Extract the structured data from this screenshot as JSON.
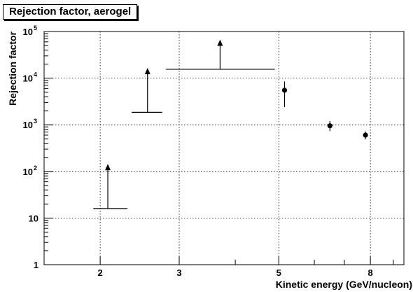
{
  "chart_data": {
    "type": "scatter",
    "title": "Rejection factor, aerogel",
    "xlabel": "Kinetic energy (GeV/nucleon)",
    "ylabel": "Rejection factor",
    "xscale": "log",
    "yscale": "log",
    "xlim": [
      1.5,
      9.5
    ],
    "ylim": [
      1,
      100000
    ],
    "grid": true,
    "x_ticks": [
      {
        "value": 2,
        "label": "2"
      },
      {
        "value": 3,
        "label": "3"
      },
      {
        "value": 5,
        "label": "5"
      },
      {
        "value": 8,
        "label": "8"
      }
    ],
    "y_ticks": [
      {
        "value": 1,
        "base": "1",
        "exp": ""
      },
      {
        "value": 10,
        "base": "10",
        "exp": ""
      },
      {
        "value": 100,
        "base": "10",
        "exp": "2"
      },
      {
        "value": 1000,
        "base": "10",
        "exp": "3"
      },
      {
        "value": 10000,
        "base": "10",
        "exp": "4"
      },
      {
        "value": 100000,
        "base": "10",
        "exp": "5"
      }
    ],
    "lower_limits": [
      {
        "x": 2.08,
        "x_low": 1.93,
        "x_high": 2.3,
        "y": 16,
        "y_arrow": 140
      },
      {
        "x": 2.55,
        "x_low": 2.35,
        "x_high": 2.75,
        "y": 1850,
        "y_arrow": 16000
      },
      {
        "x": 3.7,
        "x_low": 2.8,
        "x_high": 4.9,
        "y": 15500,
        "y_arrow": 65000
      }
    ],
    "points": [
      {
        "x": 5.15,
        "y": 5500,
        "y_err_low": 2400,
        "y_err_high": 8500
      },
      {
        "x": 6.5,
        "y": 950,
        "y_err_low": 730,
        "y_err_high": 1200
      },
      {
        "x": 7.8,
        "y": 600,
        "y_err_low": 490,
        "y_err_high": 720
      }
    ]
  }
}
